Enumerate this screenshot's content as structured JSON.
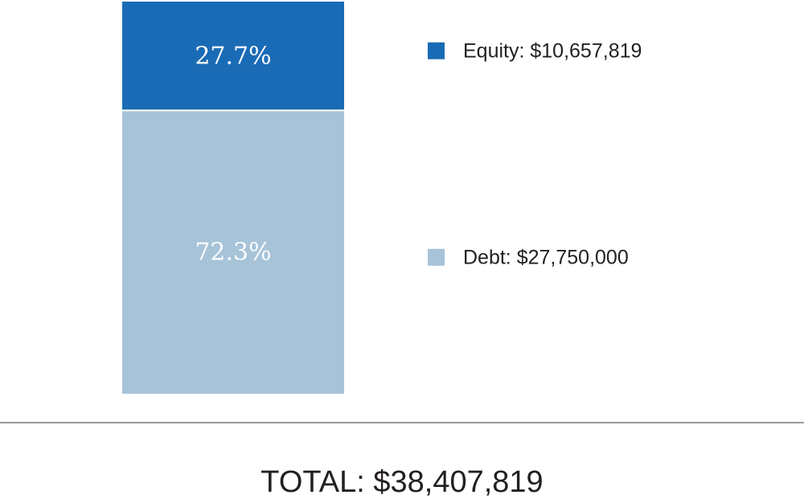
{
  "chart_data": {
    "type": "bar",
    "stacked": true,
    "categories": [
      ""
    ],
    "series": [
      {
        "name": "Equity",
        "value": 10657819,
        "value_label": "$10,657,819",
        "percent_label": "27.7%",
        "color": "#1a6bb5"
      },
      {
        "name": "Debt",
        "value": 27750000,
        "value_label": "$27,750,000",
        "percent_label": "72.3%",
        "color": "#a6c3d8"
      }
    ],
    "legend": [
      {
        "text": "Equity: $10,657,819",
        "color": "#1a6bb5"
      },
      {
        "text": "Debt: $27,750,000",
        "color": "#a6c3d8"
      }
    ],
    "total_label": "TOTAL: $38,407,819",
    "legend_position": "right",
    "grid": false,
    "baseline_color": "#7a7a7a"
  }
}
